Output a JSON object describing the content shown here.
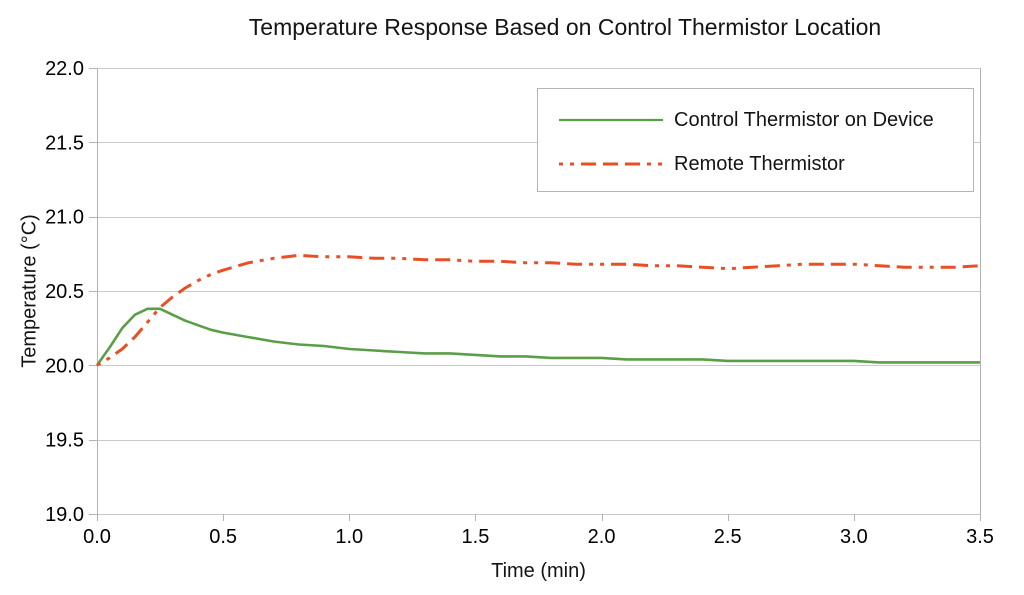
{
  "chart": {
    "title": "Temperature Response Based on Control Thermistor Location",
    "x_axis_label": "Time (min)",
    "y_axis_label": "Temperature (°C)"
  },
  "legend": {
    "position": "top-right",
    "items": [
      {
        "label": "Control Thermistor on Device",
        "color": "#5b9e48",
        "style": "solid"
      },
      {
        "label": "Remote Thermistor",
        "color": "#e94f26",
        "style": "dash-dash-dot-dot"
      }
    ]
  },
  "colors": {
    "series_green": "#5b9e48",
    "series_red": "#e94f26",
    "gridline": "#cacaca",
    "axis": "#b3b3b3",
    "text": "#000000",
    "background": "#ffffff"
  },
  "chart_data": {
    "type": "line",
    "title": "Temperature Response Based on Control Thermistor Location",
    "xlabel": "Time (min)",
    "ylabel": "Temperature (°C)",
    "xlim": [
      0.0,
      3.5
    ],
    "ylim": [
      19.0,
      22.0
    ],
    "grid": "horizontal",
    "legend_position": "top-right",
    "x_ticks": {
      "values": [
        0.0,
        0.5,
        1.0,
        1.5,
        2.0,
        2.5,
        3.0,
        3.5
      ],
      "labels": [
        "0.0",
        "0.5",
        "1.0",
        "1.5",
        "2.0",
        "2.5",
        "3.0",
        "3.5"
      ]
    },
    "y_ticks": {
      "values": [
        19.0,
        19.5,
        20.0,
        20.5,
        21.0,
        21.5,
        22.0
      ],
      "labels": [
        "19.0",
        "19.5",
        "20.0",
        "20.5",
        "21.0",
        "21.5",
        "22.0"
      ]
    },
    "series": [
      {
        "name": "Control Thermistor on Device",
        "color": "#5b9e48",
        "line_style": "solid",
        "line_width": 2.6,
        "x": [
          0.0,
          0.05,
          0.1,
          0.15,
          0.2,
          0.25,
          0.3,
          0.35,
          0.4,
          0.45,
          0.5,
          0.6,
          0.7,
          0.8,
          0.9,
          1.0,
          1.1,
          1.2,
          1.3,
          1.4,
          1.5,
          1.6,
          1.7,
          1.8,
          1.9,
          2.0,
          2.1,
          2.2,
          2.3,
          2.4,
          2.5,
          2.6,
          2.7,
          2.8,
          2.9,
          3.0,
          3.1,
          3.2,
          3.3,
          3.4,
          3.5
        ],
        "y": [
          20.0,
          20.12,
          20.25,
          20.34,
          20.38,
          20.38,
          20.34,
          20.3,
          20.27,
          20.24,
          20.22,
          20.19,
          20.16,
          20.14,
          20.13,
          20.11,
          20.1,
          20.09,
          20.08,
          20.08,
          20.07,
          20.06,
          20.06,
          20.05,
          20.05,
          20.05,
          20.04,
          20.04,
          20.04,
          20.04,
          20.03,
          20.03,
          20.03,
          20.03,
          20.03,
          20.03,
          20.02,
          20.02,
          20.02,
          20.02,
          20.02
        ]
      },
      {
        "name": "Remote Thermistor",
        "color": "#e94f26",
        "line_style": "dash-dash-dot-dot",
        "line_width": 3,
        "x": [
          0.0,
          0.05,
          0.1,
          0.15,
          0.2,
          0.25,
          0.3,
          0.35,
          0.4,
          0.45,
          0.5,
          0.6,
          0.7,
          0.8,
          0.9,
          1.0,
          1.1,
          1.2,
          1.3,
          1.4,
          1.5,
          1.6,
          1.7,
          1.8,
          1.9,
          2.0,
          2.1,
          2.2,
          2.3,
          2.4,
          2.5,
          2.6,
          2.7,
          2.8,
          2.9,
          3.0,
          3.1,
          3.2,
          3.3,
          3.4,
          3.5
        ],
        "y": [
          20.0,
          20.05,
          20.11,
          20.19,
          20.29,
          20.39,
          20.46,
          20.52,
          20.57,
          20.61,
          20.64,
          20.69,
          20.72,
          20.74,
          20.73,
          20.73,
          20.72,
          20.72,
          20.71,
          20.71,
          20.7,
          20.7,
          20.69,
          20.69,
          20.68,
          20.68,
          20.68,
          20.67,
          20.67,
          20.66,
          20.65,
          20.66,
          20.67,
          20.68,
          20.68,
          20.68,
          20.67,
          20.66,
          20.66,
          20.66,
          20.67
        ]
      }
    ]
  }
}
